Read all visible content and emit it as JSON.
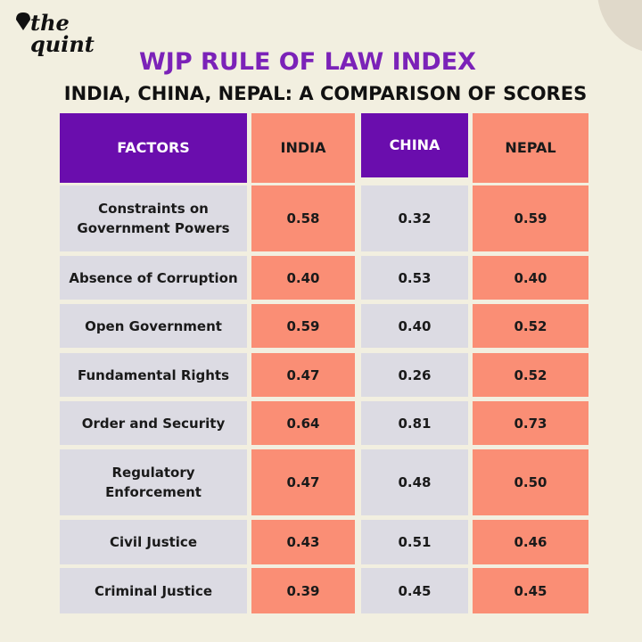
{
  "logo": {
    "text": "the quint"
  },
  "header": {
    "title": "WJP RULE OF LAW INDEX",
    "subtitle": "INDIA, CHINA, NEPAL: A COMPARISON OF SCORES"
  },
  "table": {
    "columns": [
      "FACTORS",
      "INDIA",
      "CHINA",
      "NEPAL"
    ],
    "rows": [
      [
        "Constraints on Government Powers",
        "0.58",
        "0.32",
        "0.59"
      ],
      [
        "Absence of Corruption",
        "0.40",
        "0.53",
        "0.40"
      ],
      [
        "Open Government",
        "0.59",
        "0.40",
        "0.52"
      ],
      [
        "Fundamental Rights",
        "0.47",
        "0.26",
        "0.52"
      ],
      [
        "Order and Security",
        "0.64",
        "0.81",
        "0.73"
      ],
      [
        "Regulatory Enforcement",
        "0.47",
        "0.48",
        "0.50"
      ],
      [
        "Civil Justice",
        "0.43",
        "0.51",
        "0.46"
      ],
      [
        "Criminal Justice",
        "0.39",
        "0.45",
        "0.45"
      ]
    ]
  }
}
